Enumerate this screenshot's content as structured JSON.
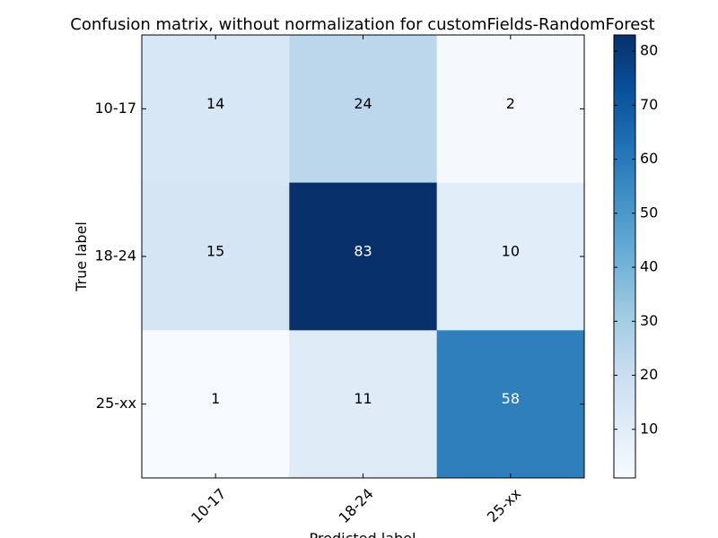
{
  "chart_data": {
    "type": "heatmap",
    "title": "Confusion matrix, without normalization for customFields-RandomForest",
    "xlabel": "Predicted label",
    "ylabel": "True label",
    "x_categories": [
      "10-17",
      "18-24",
      "25-xx"
    ],
    "y_categories": [
      "10-17",
      "18-24",
      "25-xx"
    ],
    "values": [
      [
        14,
        24,
        2
      ],
      [
        15,
        83,
        10
      ],
      [
        1,
        11,
        58
      ]
    ],
    "colormap": "Blues",
    "vmin": 1,
    "vmax": 83,
    "colorbar_ticks": [
      10,
      20,
      30,
      40,
      50,
      60,
      70,
      80
    ]
  }
}
